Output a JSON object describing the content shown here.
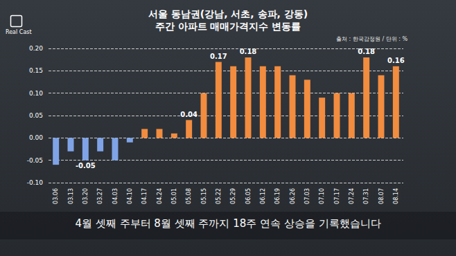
{
  "chart_data": {
    "type": "bar",
    "title": "서울 동남권(강남, 서초, 송파, 강동)",
    "subtitle": "주간 아파트 매매가격지수 변동률",
    "source": "출처 : 한국감정원 / 단위 : %",
    "caption": "4월 셋째 주부터 8월 셋째 주까지 18주 연속 상승을 기록했습니다",
    "logo": "Real Cast",
    "categories": [
      "03.06",
      "03.13",
      "03.20",
      "03.27",
      "04.03",
      "04.10",
      "04.17",
      "04.24",
      "05.01",
      "05.08",
      "05.15",
      "05.22",
      "05.29",
      "06.05",
      "06.12",
      "06.19",
      "06.26",
      "07.03",
      "07.10",
      "07.17",
      "07.24",
      "07.31",
      "08.07",
      "08.14"
    ],
    "values": [
      -0.06,
      -0.03,
      -0.05,
      -0.03,
      -0.05,
      -0.01,
      0.02,
      0.02,
      0.01,
      0.04,
      0.1,
      0.17,
      0.16,
      0.18,
      0.16,
      0.16,
      0.14,
      0.13,
      0.09,
      0.1,
      0.1,
      0.18,
      0.14,
      0.16
    ],
    "value_labels": [
      null,
      null,
      "-0.05",
      null,
      null,
      null,
      null,
      null,
      null,
      "0.04",
      null,
      "0.17",
      null,
      "0.18",
      null,
      null,
      null,
      null,
      null,
      null,
      null,
      "0.18",
      null,
      "0.16"
    ],
    "colors": [
      "#7fa3e6",
      "#7fa3e6",
      "#7fa3e6",
      "#7fa3e6",
      "#7fa3e6",
      "#7fa3e6",
      "#f28c3f",
      "#f28c3f",
      "#f28c3f",
      "#f28c3f",
      "#f28c3f",
      "#f28c3f",
      "#f28c3f",
      "#f28c3f",
      "#f28c3f",
      "#f28c3f",
      "#f28c3f",
      "#f28c3f",
      "#f28c3f",
      "#f28c3f",
      "#f28c3f",
      "#f28c3f",
      "#f28c3f",
      "#f28c3f"
    ],
    "ylim": [
      -0.1,
      0.2
    ],
    "yticks": [
      {
        "value": -0.1,
        "label": "-0.10"
      },
      {
        "value": -0.05,
        "label": "-0.05"
      },
      {
        "value": 0,
        "label": "0.00"
      },
      {
        "value": 0.05,
        "label": "0.05"
      },
      {
        "value": 0.1,
        "label": "0.10"
      },
      {
        "value": 0.15,
        "label": "0.15"
      },
      {
        "value": 0.2,
        "label": "0.20"
      }
    ],
    "grid": true,
    "data_labels": true
  }
}
